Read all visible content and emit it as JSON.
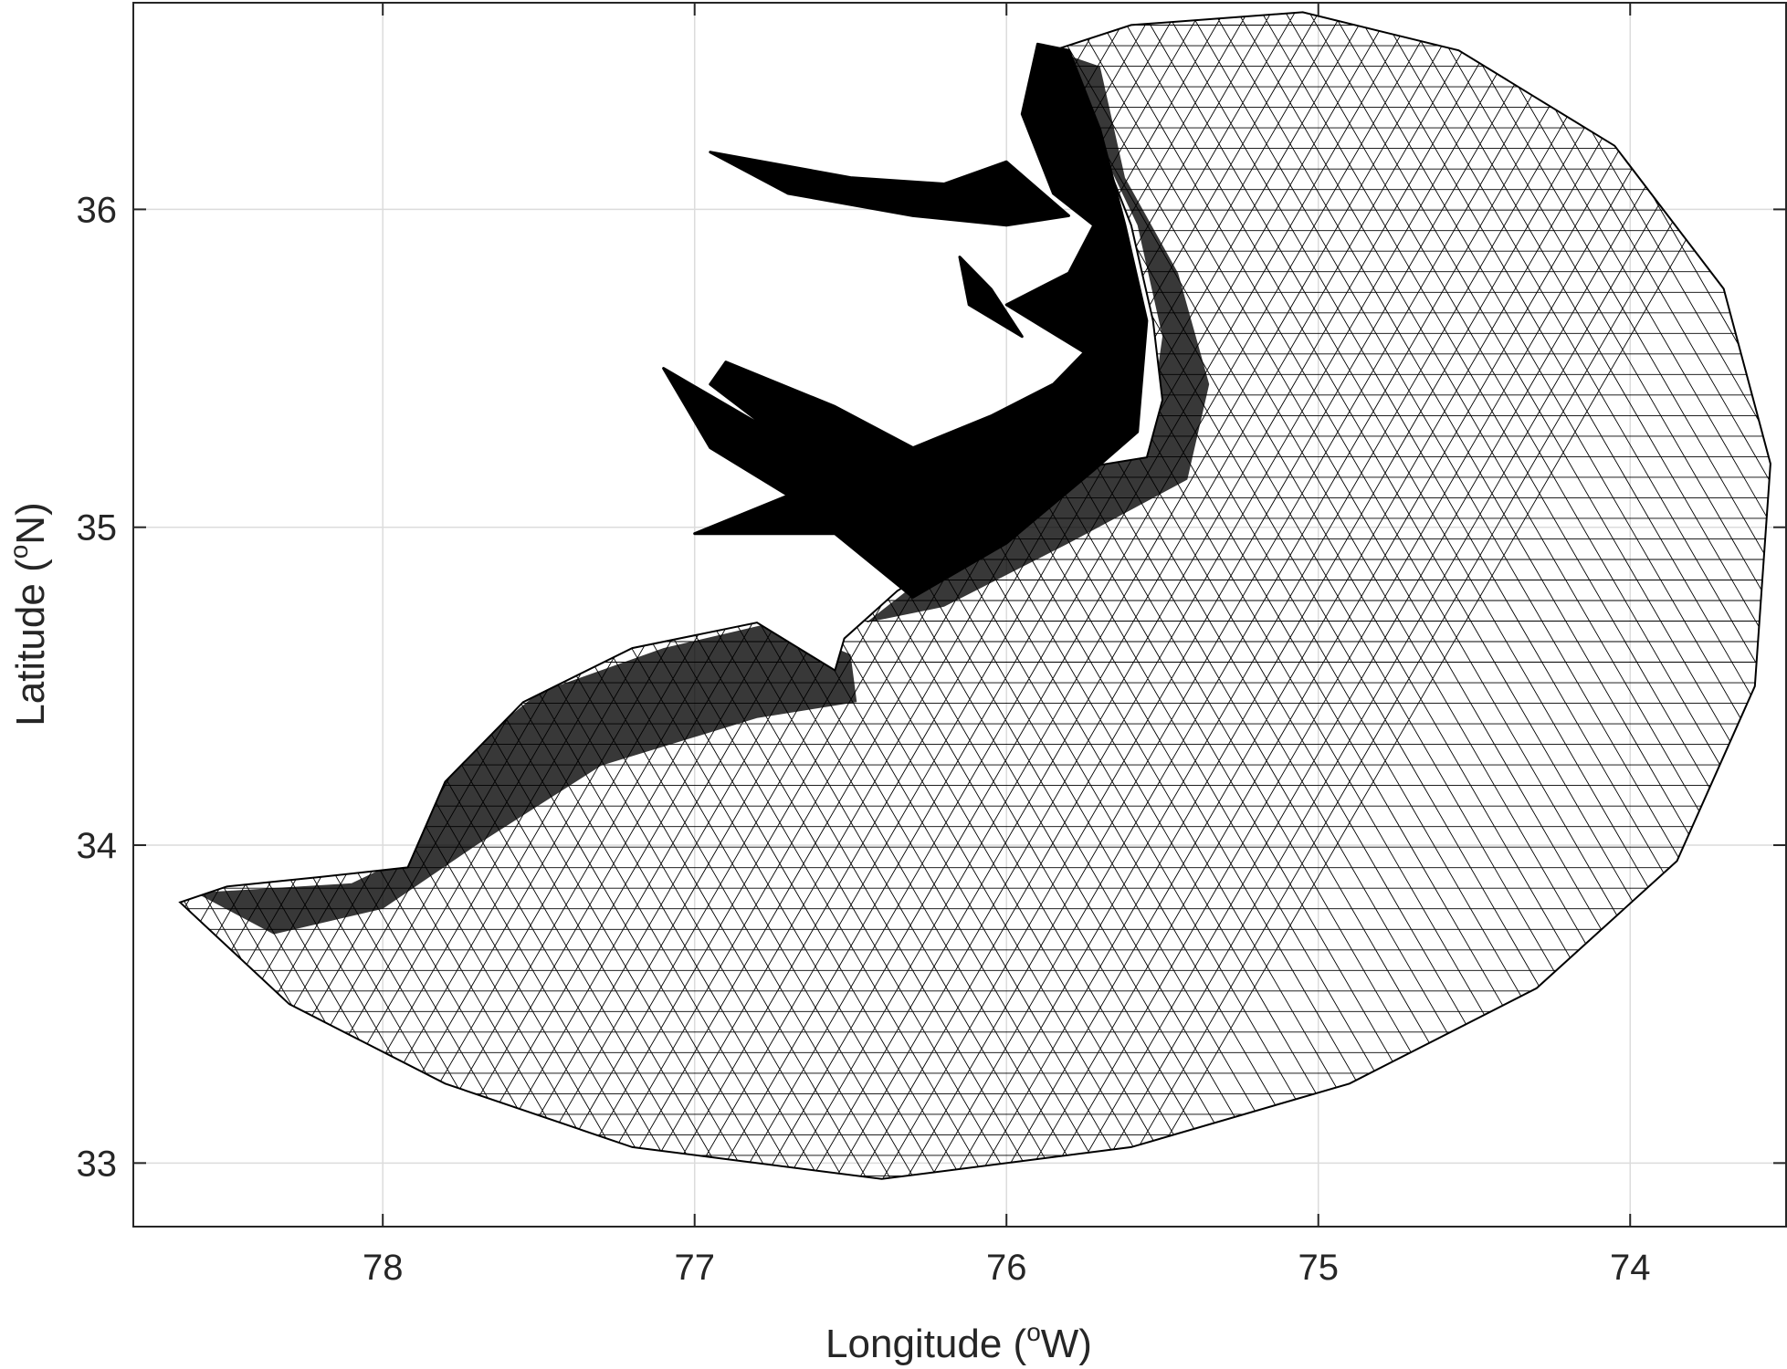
{
  "chart_data": {
    "type": "map-mesh",
    "xlabel": "Longitude (",
    "xlabel_sup": "o",
    "xlabel_tail": "W)",
    "ylabel": "Latitude (",
    "ylabel_sup": "o",
    "ylabel_tail": "N)",
    "xlim": [
      78.8,
      73.5
    ],
    "ylim": [
      32.8,
      36.65
    ],
    "x_ticks": [
      78,
      77,
      76,
      75,
      74
    ],
    "y_ticks": [
      33,
      34,
      35,
      36
    ],
    "x_tick_labels": [
      "78",
      "77",
      "76",
      "75",
      "74"
    ],
    "y_tick_labels": [
      "33",
      "34",
      "35",
      "36"
    ],
    "grid": true,
    "mesh_color": "#000000",
    "grid_color": "#dcdcdc",
    "domain_outline_lonlat": [
      [
        78.65,
        33.82
      ],
      [
        78.3,
        33.5
      ],
      [
        77.8,
        33.25
      ],
      [
        77.2,
        33.05
      ],
      [
        76.4,
        32.95
      ],
      [
        75.6,
        33.05
      ],
      [
        74.9,
        33.25
      ],
      [
        74.3,
        33.55
      ],
      [
        73.85,
        33.95
      ],
      [
        73.6,
        34.5
      ],
      [
        73.55,
        35.2
      ],
      [
        73.7,
        35.75
      ],
      [
        74.05,
        36.2
      ],
      [
        74.55,
        36.5
      ],
      [
        75.05,
        36.62
      ],
      [
        75.6,
        36.58
      ],
      [
        75.85,
        36.5
      ]
    ],
    "coast_lonlat": [
      [
        75.85,
        36.5
      ],
      [
        75.7,
        36.2
      ],
      [
        75.6,
        35.95
      ],
      [
        75.53,
        35.65
      ],
      [
        75.5,
        35.4
      ],
      [
        75.55,
        35.22
      ],
      [
        75.8,
        35.18
      ],
      [
        76.1,
        34.95
      ],
      [
        76.35,
        34.8
      ],
      [
        76.52,
        34.65
      ],
      [
        76.55,
        34.55
      ],
      [
        76.8,
        34.7
      ],
      [
        77.2,
        34.62
      ],
      [
        77.55,
        34.45
      ],
      [
        77.8,
        34.2
      ],
      [
        77.92,
        33.93
      ],
      [
        78.2,
        33.9
      ],
      [
        78.5,
        33.87
      ],
      [
        78.65,
        33.82
      ]
    ],
    "dense_zones_lonlat": [
      [
        [
          78.6,
          33.85
        ],
        [
          78.1,
          33.88
        ],
        [
          77.95,
          33.95
        ],
        [
          77.85,
          34.2
        ],
        [
          77.5,
          34.48
        ],
        [
          77.1,
          34.62
        ],
        [
          76.75,
          34.7
        ],
        [
          76.5,
          34.6
        ],
        [
          76.48,
          34.45
        ],
        [
          76.8,
          34.4
        ],
        [
          77.3,
          34.25
        ],
        [
          77.7,
          34.0
        ],
        [
          78.0,
          33.8
        ],
        [
          78.35,
          33.72
        ]
      ],
      [
        [
          76.45,
          34.7
        ],
        [
          76.15,
          34.93
        ],
        [
          75.8,
          35.18
        ],
        [
          75.55,
          35.25
        ],
        [
          75.5,
          35.6
        ],
        [
          75.58,
          35.95
        ],
        [
          75.75,
          36.3
        ],
        [
          75.85,
          36.5
        ],
        [
          75.7,
          36.45
        ],
        [
          75.62,
          36.1
        ],
        [
          75.45,
          35.8
        ],
        [
          75.35,
          35.45
        ],
        [
          75.42,
          35.15
        ],
        [
          75.8,
          34.95
        ],
        [
          76.2,
          34.75
        ]
      ]
    ],
    "land_water_lonlat": [
      [
        [
          75.9,
          36.52
        ],
        [
          75.95,
          36.3
        ],
        [
          75.85,
          36.05
        ],
        [
          75.72,
          35.95
        ],
        [
          75.8,
          35.8
        ],
        [
          76.0,
          35.7
        ],
        [
          75.75,
          35.55
        ],
        [
          75.85,
          35.45
        ],
        [
          76.05,
          35.35
        ],
        [
          76.3,
          35.25
        ],
        [
          76.55,
          35.38
        ],
        [
          76.9,
          35.52
        ],
        [
          76.95,
          35.45
        ],
        [
          76.75,
          35.3
        ],
        [
          77.1,
          35.5
        ],
        [
          76.95,
          35.25
        ],
        [
          76.7,
          35.1
        ],
        [
          77.0,
          34.98
        ],
        [
          76.7,
          34.98
        ],
        [
          76.55,
          34.98
        ],
        [
          76.3,
          34.78
        ],
        [
          76.0,
          34.95
        ],
        [
          75.72,
          35.18
        ],
        [
          75.58,
          35.3
        ],
        [
          75.55,
          35.65
        ],
        [
          75.62,
          35.95
        ],
        [
          75.7,
          36.25
        ],
        [
          75.8,
          36.5
        ]
      ],
      [
        [
          76.0,
          36.15
        ],
        [
          76.2,
          36.08
        ],
        [
          76.5,
          36.1
        ],
        [
          76.95,
          36.18
        ],
        [
          76.7,
          36.05
        ],
        [
          76.3,
          35.98
        ],
        [
          76.0,
          35.95
        ],
        [
          75.8,
          35.98
        ]
      ],
      [
        [
          76.15,
          35.85
        ],
        [
          76.05,
          35.75
        ],
        [
          75.95,
          35.6
        ],
        [
          76.12,
          35.7
        ]
      ]
    ]
  }
}
